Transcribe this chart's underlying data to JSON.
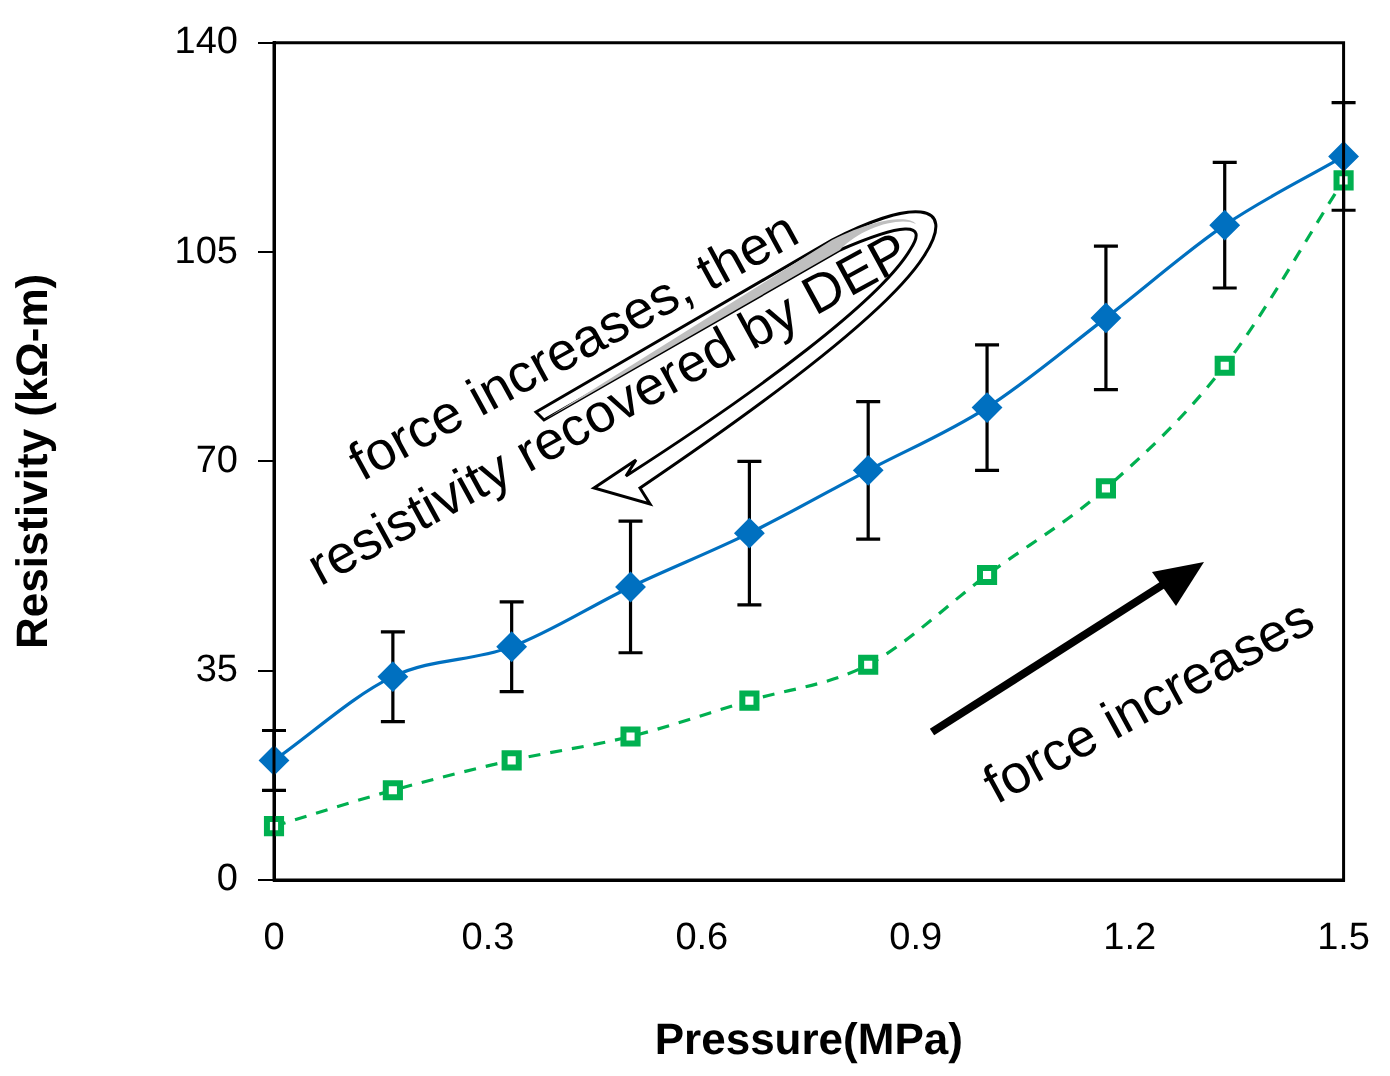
{
  "chart_data": {
    "type": "line",
    "xlabel": "Pressure(MPa)",
    "ylabel": "Resistivity (kΩ-m)",
    "x": [
      0,
      0.1667,
      0.3333,
      0.5,
      0.6667,
      0.8333,
      1.0,
      1.1667,
      1.3333,
      1.5
    ],
    "series": [
      {
        "color": "#0070c0",
        "marker": "diamond",
        "line_style": "solid",
        "values": [
          20,
          34,
          39,
          49,
          58,
          68.5,
          79,
          94,
          109.5,
          121
        ],
        "errors": [
          5,
          7.5,
          7.5,
          11,
          12,
          11.5,
          10.5,
          12,
          10.5,
          9
        ]
      },
      {
        "color": "#00b050",
        "marker": "square",
        "line_style": "dashed",
        "values": [
          9,
          15,
          20,
          24,
          30,
          36,
          51,
          65.5,
          86,
          117
        ]
      }
    ],
    "xlim": [
      0,
      1.5
    ],
    "xticks": [
      0,
      0.3,
      0.6,
      0.9,
      1.2,
      1.5
    ],
    "ylim": [
      0,
      140
    ],
    "yticks": [
      0,
      35,
      70,
      105,
      140
    ],
    "grid": false,
    "legend": false,
    "annotations": [
      "force increases, then\nresistivity recovered by DEP",
      "force increases"
    ]
  }
}
